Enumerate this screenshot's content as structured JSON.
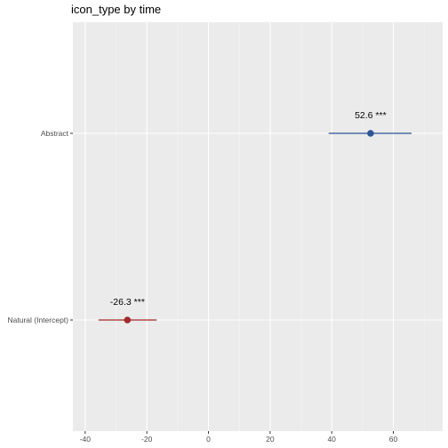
{
  "chart_data": {
    "type": "scatter",
    "title": "icon_type by time",
    "xlabel": "",
    "ylabel": "",
    "xlim": [
      -44,
      76
    ],
    "x_ticks": [
      -40,
      -20,
      0,
      20,
      40,
      60
    ],
    "x_tick_labels": [
      "-40",
      "-20",
      "0",
      "20",
      "40",
      "60"
    ],
    "categories": [
      "Abstract",
      "Natural (Intercept)"
    ],
    "grid": true,
    "points": [
      {
        "category": "Abstract",
        "estimate": 52.6,
        "ci_low": 39.0,
        "ci_high": 65.9,
        "label": "52.6 ***",
        "color": "#2f5597"
      },
      {
        "category": "Natural (Intercept)",
        "estimate": -26.3,
        "ci_low": -35.7,
        "ci_high": -16.8,
        "label": "-26.3 ***",
        "color": "#a52a2a"
      }
    ]
  }
}
